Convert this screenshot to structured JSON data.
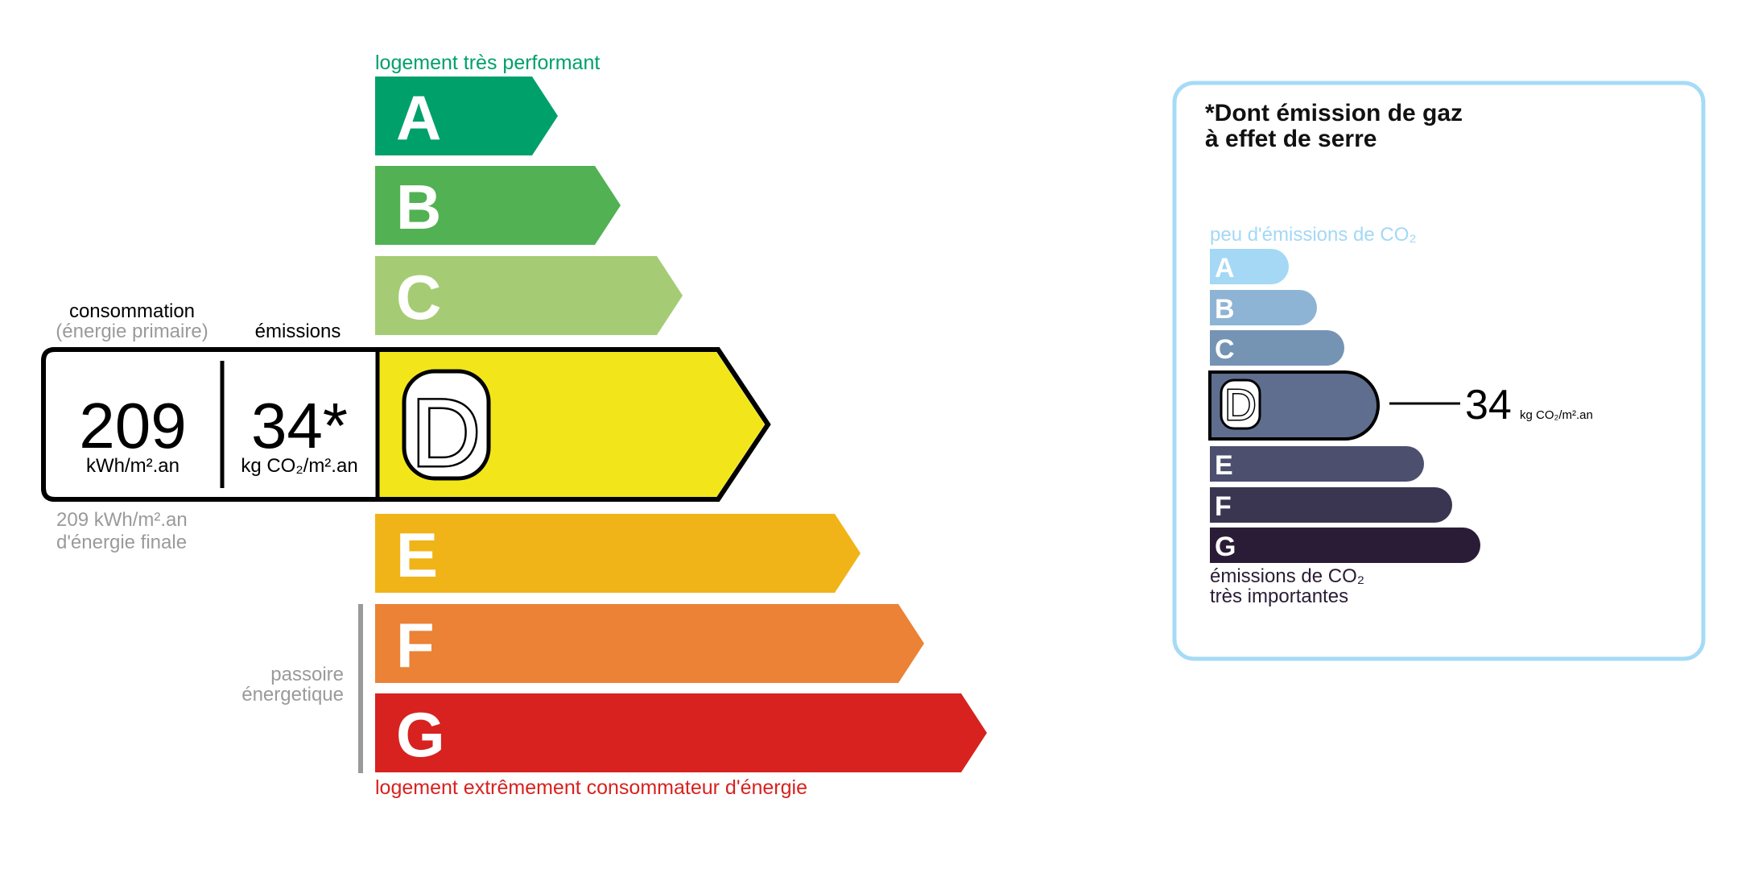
{
  "energy": {
    "top_label": "logement très performant",
    "bottom_label": "logement extrêmement consommateur d'énergie",
    "passoire_line1": "passoire",
    "passoire_line2": "énergetique",
    "classes": [
      {
        "letter": "A",
        "color": "#00a06b"
      },
      {
        "letter": "B",
        "color": "#52b153"
      },
      {
        "letter": "C",
        "color": "#a5cc74"
      },
      {
        "letter": "D",
        "color": "#f2e61a"
      },
      {
        "letter": "E",
        "color": "#f0b418"
      },
      {
        "letter": "F",
        "color": "#eb8235"
      },
      {
        "letter": "G",
        "color": "#d7221f"
      }
    ],
    "current_class": "D",
    "consumption_header": "consommation",
    "consumption_subheader": "(énergie primaire)",
    "emissions_header": "émissions",
    "consumption_value": "209",
    "consumption_unit": "kWh/m².an",
    "emissions_value": "34*",
    "emissions_unit": "kg CO₂/m².an",
    "final_energy_line1": "209 kWh/m².an",
    "final_energy_line2": "d'énergie finale",
    "top_label_color": "#00a06b",
    "bottom_label_color": "#d7221f"
  },
  "ges": {
    "title_line1": "*Dont émission de gaz",
    "title_line2": "à effet de serre",
    "top_label": "peu d'émissions de CO₂",
    "bottom_label_line1": "émissions de CO₂",
    "bottom_label_line2": "très importantes",
    "classes": [
      {
        "letter": "A",
        "color": "#a4d8f5"
      },
      {
        "letter": "B",
        "color": "#8db4d4"
      },
      {
        "letter": "C",
        "color": "#7594b4"
      },
      {
        "letter": "D",
        "color": "#5f6e8e"
      },
      {
        "letter": "E",
        "color": "#4d4f6f"
      },
      {
        "letter": "F",
        "color": "#3a3651"
      },
      {
        "letter": "G",
        "color": "#2a1c36"
      }
    ],
    "current_class": "D",
    "value": "34",
    "unit": "kg CO₂/m².an",
    "border_color": "#a6dbf7"
  }
}
